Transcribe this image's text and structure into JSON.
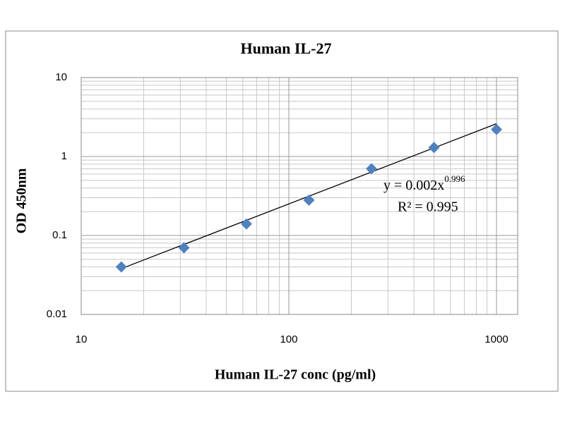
{
  "chart_data": {
    "type": "scatter",
    "title": "Human IL-27",
    "x_label": "Human IL-27 conc (pg/ml)",
    "y_label": "OD 450nm",
    "log_x": true,
    "log_y": true,
    "grid": true,
    "minor_grid": true,
    "xlim": [
      10,
      1265
    ],
    "ylim": [
      0.01,
      10
    ],
    "xticks": [
      10,
      100,
      1000
    ],
    "yticks": [
      0.01,
      0.1,
      1,
      10
    ],
    "series": [
      {
        "color": "#4f81bd",
        "x": [
          15.6,
          31.25,
          62.5,
          125,
          250,
          500,
          1000
        ],
        "values": [
          0.04,
          0.07,
          0.14,
          0.28,
          0.7,
          1.3,
          2.2
        ]
      }
    ],
    "trendline": {
      "x": [
        15.6,
        1000
      ],
      "values": [
        0.038,
        2.6
      ],
      "equation_label": "y = 0.002x",
      "exponent": 0.996,
      "r_squared_label": "R² = 0.995"
    }
  }
}
